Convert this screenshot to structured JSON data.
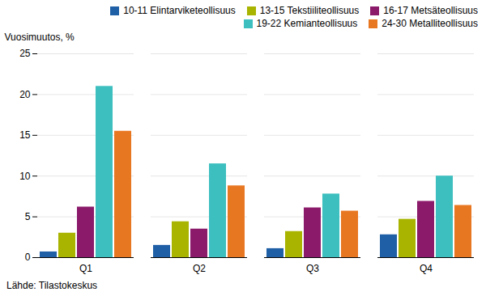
{
  "chart_data": {
    "type": "bar",
    "categories": [
      "Q1",
      "Q2",
      "Q3",
      "Q4"
    ],
    "series": [
      {
        "name": "10-11 Elintarviketeollisuus",
        "color": "#1f5fa6",
        "values": [
          0.7,
          1.5,
          1.1,
          2.8
        ]
      },
      {
        "name": "13-15 Tekstiiliteollisuus",
        "color": "#a8b400",
        "values": [
          3.0,
          4.4,
          3.2,
          4.7
        ]
      },
      {
        "name": "16-17 Metsäteollisuus",
        "color": "#8b1a6b",
        "values": [
          6.2,
          3.5,
          6.1,
          6.9
        ]
      },
      {
        "name": "19-22 Kemianteollisuus",
        "color": "#3dbfbf",
        "values": [
          21.0,
          11.5,
          7.8,
          10.0
        ]
      },
      {
        "name": "24-30 Metalliteollisuus",
        "color": "#e87722",
        "values": [
          15.5,
          8.8,
          5.7,
          6.4
        ]
      }
    ],
    "ylabel": "Vuosimuutos, %",
    "ylim": [
      0,
      25
    ],
    "yticks": [
      0,
      5,
      10,
      15,
      20,
      25
    ],
    "grid": true,
    "legend": "upper right",
    "footnote": "Lähde: Tilastokeskus"
  }
}
